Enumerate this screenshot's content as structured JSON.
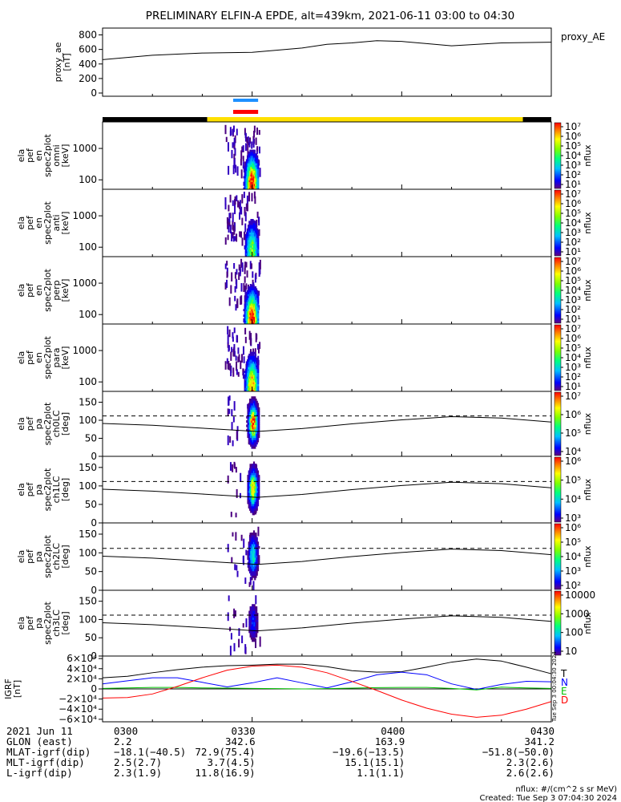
{
  "title": "PRELIMINARY ELFIN-A EPDE, alt=439km, 2021-06-11 03:00 to 04:30",
  "created": "Created: Tue Sep  3 07:04:30 2024",
  "nflux_unit": "nflux: #/(cm^2 s sr MeV)",
  "side_stamp": "Tue Sep  3 00:04:30 2024",
  "chart_data": [
    {
      "type": "line",
      "name": "proxy_ae",
      "ylabel": [
        "proxy_ae",
        "[nT]"
      ],
      "legend": "proxy_AE",
      "yticks": [
        "800",
        "600",
        "400",
        "200",
        "0"
      ],
      "ylim": [
        0,
        850
      ],
      "x_minutes": [
        0,
        10,
        20,
        30,
        40,
        45,
        50,
        55,
        60,
        65,
        70,
        80,
        90
      ],
      "values": [
        460,
        520,
        550,
        560,
        620,
        670,
        690,
        720,
        710,
        680,
        650,
        690,
        700
      ]
    },
    {
      "type": "bar",
      "name": "orbit_indicator",
      "segments": [
        {
          "from": 0,
          "to": 21,
          "color": "#000000"
        },
        {
          "from": 21,
          "to": 84.3,
          "color": "#ffe000"
        },
        {
          "from": 84.3,
          "to": 90,
          "color": "#000000"
        }
      ],
      "markers": [
        {
          "from": 26.2,
          "to": 31.2,
          "color": "#1e90ff"
        },
        {
          "from": 26.2,
          "to": 31.2,
          "color": "#ff0000"
        }
      ]
    },
    {
      "type": "heatmap",
      "ylabel": [
        "ela",
        "pef",
        "en",
        "spec2plot",
        "omni",
        "[keV]"
      ],
      "yscale": "log",
      "ylim": [
        50,
        7000
      ],
      "yticks": [
        "1000",
        "100"
      ],
      "zlabel": "nflux",
      "zticks": [
        "10⁷",
        "10⁶",
        "10⁵",
        "10⁴",
        "10³",
        "10²",
        "10¹"
      ],
      "zlim": [
        10,
        10000000
      ],
      "peak": 10000000
    },
    {
      "type": "heatmap",
      "ylabel": [
        "ela",
        "pef",
        "en",
        "spec2plot",
        "anti",
        "[keV]"
      ],
      "yscale": "log",
      "ylim": [
        50,
        7000
      ],
      "yticks": [
        "1000",
        "100"
      ],
      "zlabel": "nflux",
      "zticks": [
        "10⁷",
        "10⁶",
        "10⁵",
        "10⁴",
        "10³",
        "10²",
        "10¹"
      ],
      "zlim": [
        10,
        10000000
      ],
      "peak": 30000
    },
    {
      "type": "heatmap",
      "ylabel": [
        "ela",
        "pef",
        "en",
        "spec2plot",
        "perp",
        "[keV]"
      ],
      "yscale": "log",
      "ylim": [
        50,
        7000
      ],
      "yticks": [
        "1000",
        "100"
      ],
      "zlabel": "nflux",
      "zticks": [
        "10⁷",
        "10⁶",
        "10⁵",
        "10⁴",
        "10³",
        "10²",
        "10¹"
      ],
      "zlim": [
        10,
        10000000
      ],
      "peak": 10000000
    },
    {
      "type": "heatmap",
      "ylabel": [
        "ela",
        "pef",
        "en",
        "spec2plot",
        "para",
        "[keV]"
      ],
      "yscale": "log",
      "ylim": [
        50,
        7000
      ],
      "yticks": [
        "1000",
        "100"
      ],
      "zlabel": "nflux",
      "zticks": [
        "10⁷",
        "10⁶",
        "10⁵",
        "10⁴",
        "10³",
        "10²",
        "10¹"
      ],
      "zlim": [
        10,
        10000000
      ],
      "peak": 1000000
    },
    {
      "type": "heatmap",
      "ylabel": [
        "ela",
        "pef",
        "pa",
        "spec2plot",
        "ch0LC",
        "[deg]"
      ],
      "ylim": [
        0,
        180
      ],
      "yticks": [
        "150",
        "100",
        "50",
        "0"
      ],
      "zlabel": "nflux",
      "zticks": [
        "10⁷",
        "10⁶",
        "10⁵",
        "10⁴"
      ],
      "zlim": [
        3000,
        10000000
      ],
      "lc_x": [
        0,
        10,
        20,
        31,
        40,
        50,
        60,
        70,
        80,
        90
      ],
      "lc_y": [
        91,
        86,
        78,
        69,
        77,
        90,
        101,
        110,
        106,
        95
      ],
      "dashed_y": 112
    },
    {
      "type": "heatmap",
      "ylabel": [
        "ela",
        "pef",
        "pa",
        "spec2plot",
        "ch1LC",
        "[deg]"
      ],
      "ylim": [
        0,
        180
      ],
      "yticks": [
        "150",
        "100",
        "50",
        "0"
      ],
      "zlabel": "nflux",
      "zticks": [
        "10⁶",
        "10⁵",
        "10⁴",
        "10³"
      ],
      "zlim": [
        300,
        3000000
      ],
      "lc_x": [
        0,
        10,
        20,
        31,
        40,
        50,
        60,
        70,
        80,
        90
      ],
      "lc_y": [
        91,
        86,
        78,
        69,
        77,
        90,
        101,
        110,
        106,
        95
      ],
      "dashed_y": 112
    },
    {
      "type": "heatmap",
      "ylabel": [
        "ela",
        "pef",
        "pa",
        "spec2plot",
        "ch2LC",
        "[deg]"
      ],
      "ylim": [
        0,
        180
      ],
      "yticks": [
        "150",
        "100",
        "50",
        "0"
      ],
      "zlabel": "nflux",
      "zticks": [
        "10⁶",
        "10⁵",
        "10⁴",
        "10³",
        "10²"
      ],
      "zlim": [
        30,
        3000000
      ],
      "lc_x": [
        0,
        10,
        20,
        31,
        40,
        50,
        60,
        70,
        80,
        90
      ],
      "lc_y": [
        91,
        86,
        78,
        69,
        77,
        90,
        101,
        110,
        106,
        95
      ],
      "dashed_y": 112
    },
    {
      "type": "heatmap",
      "ylabel": [
        "ela",
        "pef",
        "pa",
        "spec2plot",
        "ch3LC",
        "[deg]"
      ],
      "ylim": [
        0,
        180
      ],
      "yticks": [
        "150",
        "100",
        "50",
        "0"
      ],
      "zlabel": "nflux",
      "zticks": [
        "10000",
        "1000",
        "100",
        "10"
      ],
      "zlim": [
        5,
        30000
      ],
      "lc_x": [
        0,
        10,
        20,
        31,
        40,
        50,
        60,
        70,
        80,
        90
      ],
      "lc_y": [
        91,
        86,
        78,
        69,
        77,
        90,
        101,
        110,
        106,
        95
      ],
      "dashed_y": 112
    },
    {
      "type": "line",
      "name": "IGRF",
      "ylabel": [
        "IGRF",
        "[nT]"
      ],
      "yticks": [
        "6×10⁴",
        "4×10⁴",
        "2×10⁴",
        "0",
        "−2×10⁴",
        "−4×10⁴",
        "−6×10⁴"
      ],
      "ylim": [
        -65000,
        65000
      ],
      "x_minutes": [
        0,
        5,
        10,
        15,
        20,
        25,
        30,
        35,
        40,
        45,
        50,
        55,
        60,
        65,
        70,
        75,
        80,
        85,
        90
      ],
      "series": [
        {
          "name": "T",
          "color": "#000000",
          "values": [
            22000,
            25000,
            32000,
            38000,
            43000,
            46000,
            47000,
            49000,
            49000,
            44000,
            36000,
            33000,
            34000,
            43000,
            53000,
            59000,
            55000,
            43000,
            30000
          ]
        },
        {
          "name": "N",
          "color": "#0000ff",
          "values": [
            10000,
            16000,
            22000,
            22000,
            13000,
            4000,
            12000,
            22000,
            12000,
            2000,
            14000,
            28000,
            33000,
            28000,
            10000,
            -1000,
            9000,
            15000,
            14000
          ]
        },
        {
          "name": "E",
          "color": "#00c000",
          "values": [
            1000,
            2000,
            3000,
            3000,
            2000,
            1500,
            1000,
            500,
            0,
            500,
            1500,
            2500,
            3000,
            3000,
            1000,
            -2000,
            3500,
            2000,
            1000
          ]
        },
        {
          "name": "D",
          "color": "#ff0000",
          "values": [
            -18000,
            -17000,
            -10000,
            5000,
            22000,
            37000,
            45000,
            47000,
            43000,
            32000,
            15000,
            -3000,
            -22000,
            -38000,
            -50000,
            -56000,
            -52000,
            -40000,
            -25000
          ]
        }
      ]
    }
  ],
  "xaxis": {
    "ticks": [
      {
        "minute": 0,
        "time": "0300",
        "glon": "2.2",
        "mlat": "−18.1(−40.5)",
        "mlt": "2.5(2.7)",
        "l": "2.3(1.9)"
      },
      {
        "minute": 30,
        "time": "0330",
        "glon": "342.6",
        "mlat": "72.9(75.4)",
        "mlt": "3.7(4.5)",
        "l": "11.8(16.9)"
      },
      {
        "minute": 60,
        "time": "0400",
        "glon": "163.9",
        "mlat": "−19.6(−13.5)",
        "mlt": "15.1(15.1)",
        "l": "1.1(1.1)"
      },
      {
        "minute": 90,
        "time": "0430",
        "glon": "341.2",
        "mlat": "−51.8(−50.0)",
        "mlt": "2.3(2.6)",
        "l": "2.6(2.6)"
      }
    ],
    "row_labels": [
      "2021 Jun 11",
      "GLON (east)",
      "MLAT-igrf(dip)",
      "MLT-igrf(dip)",
      "L-igrf(dip)"
    ]
  }
}
